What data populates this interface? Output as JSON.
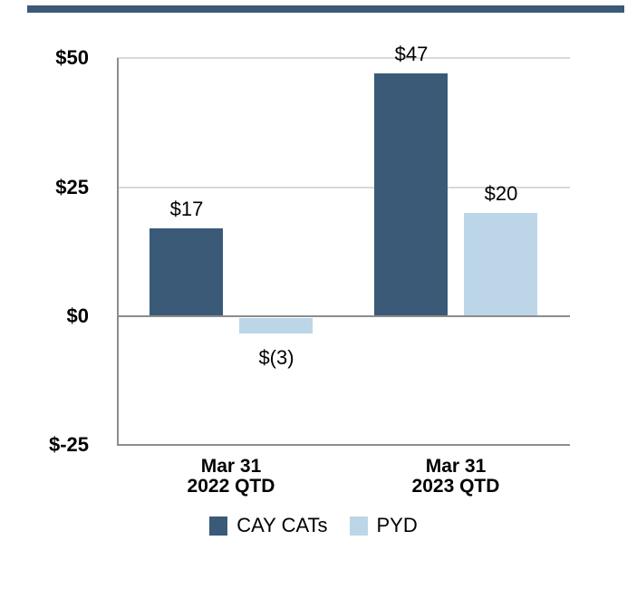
{
  "figure": {
    "top_rule_color": "#3A5A78",
    "background": "#FFFFFF"
  },
  "chart_data": {
    "type": "bar",
    "title": "",
    "xlabel": "",
    "ylabel": "",
    "grid": "horizontal",
    "legend_position": "bottom",
    "categories": [
      {
        "id": "2022",
        "lines": [
          "Mar 31",
          "2022 QTD"
        ]
      },
      {
        "id": "2023",
        "lines": [
          "Mar 31",
          "2023 QTD"
        ]
      }
    ],
    "series": [
      {
        "name": "CAY CATs",
        "color": "#3A5A78",
        "values": [
          17,
          47
        ],
        "value_labels": [
          "$17",
          "$47"
        ]
      },
      {
        "name": "PYD",
        "color": "#BCD6E8",
        "values": [
          -3,
          20
        ],
        "value_labels": [
          "$(3)",
          "$20"
        ]
      }
    ],
    "y_axis": {
      "min": -25,
      "max": 50,
      "ticks": [
        {
          "value": 50,
          "label": "$50"
        },
        {
          "value": 25,
          "label": "$25"
        },
        {
          "value": 0,
          "label": "$0"
        },
        {
          "value": -25,
          "label": "$-25"
        }
      ]
    },
    "colors": {
      "gridline_minor": "#D9D9D9",
      "gridline_major": "#8C8C8C",
      "axis_line": "#8C8C8C",
      "text": "#000000"
    }
  }
}
